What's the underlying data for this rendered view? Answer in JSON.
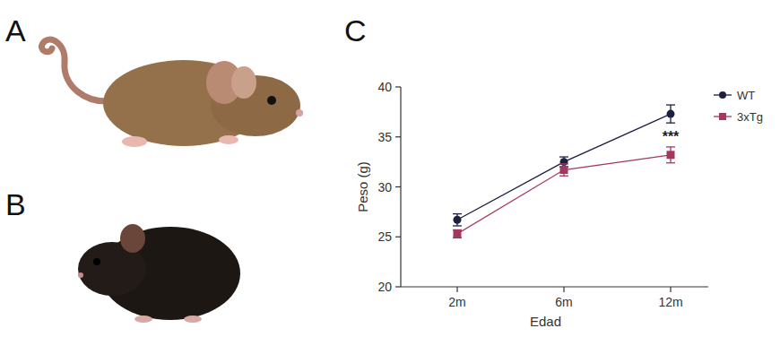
{
  "panel_labels": [
    "A",
    "B",
    "C"
  ],
  "chart_data": {
    "type": "line",
    "x_label": "Edad",
    "y_label": "Peso (g)",
    "categories": [
      "2m",
      "6m",
      "12m"
    ],
    "series": [
      {
        "name": "WT",
        "color": "#1b2040",
        "marker": "circle",
        "values": [
          26.7,
          32.5,
          37.3
        ],
        "errors": [
          0.6,
          0.5,
          0.9
        ]
      },
      {
        "name": "3xTg",
        "color": "#a4375f",
        "marker": "square",
        "values": [
          25.3,
          31.7,
          33.2
        ],
        "errors": [
          0.4,
          0.6,
          0.8
        ]
      }
    ],
    "ylim": [
      20,
      40
    ],
    "yticks": [
      20,
      25,
      30,
      35,
      40
    ],
    "grid": false,
    "legend": "right",
    "annotations": [
      {
        "text": "***",
        "x": "12m"
      }
    ]
  }
}
